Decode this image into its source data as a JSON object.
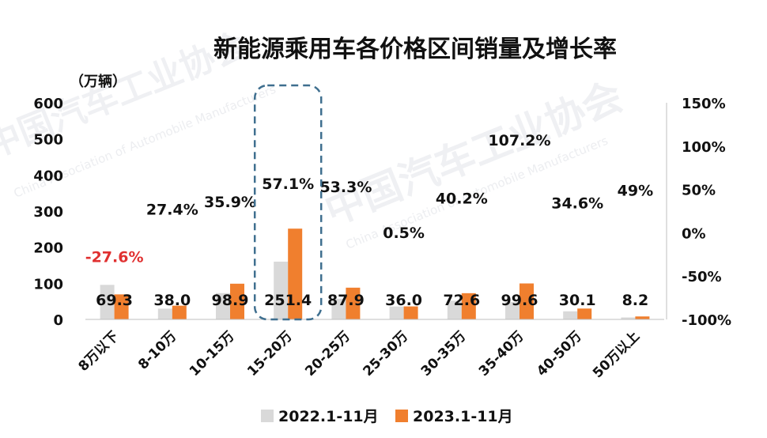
{
  "chart_data": {
    "type": "bar",
    "title": "新能源乘用车各价格区间销量及增长率",
    "unit_label": "（万辆）",
    "categories": [
      "8万以下",
      "8-10万",
      "10-15万",
      "15-20万",
      "20-25万",
      "25-30万",
      "30-35万",
      "35-40万",
      "40-50万",
      "50万以上"
    ],
    "series": [
      {
        "name": "2022.1-11月",
        "color": "#d9d9d9",
        "values": [
          95.7,
          29.8,
          72.8,
          160.0,
          57.3,
          35.8,
          51.8,
          48.1,
          22.4,
          5.5
        ]
      },
      {
        "name": "2023.1-11月",
        "color": "#f07f2e",
        "values": [
          69.3,
          38.0,
          98.9,
          251.4,
          87.9,
          36.0,
          72.6,
          99.6,
          30.1,
          8.2
        ]
      }
    ],
    "value_labels": [
      "69.3",
      "38.0",
      "98.9",
      "251.4",
      "87.9",
      "36.0",
      "72.6",
      "99.6",
      "30.1",
      "8.2"
    ],
    "growth_labels": [
      "-27.6%",
      "27.4%",
      "35.9%",
      "57.1%",
      "53.3%",
      "0.5%",
      "40.2%",
      "107.2%",
      "34.6%",
      "49%"
    ],
    "growth_values": [
      -27.6,
      27.4,
      35.9,
      57.1,
      53.3,
      0.5,
      40.2,
      107.2,
      34.6,
      49
    ],
    "ylim": [
      0,
      600
    ],
    "y_ticks": [
      "600",
      "500",
      "400",
      "300",
      "200",
      "100",
      "0"
    ],
    "y2lim": [
      -100,
      150
    ],
    "y2_ticks": [
      "150%",
      "100%",
      "50%",
      "0%",
      "-50%",
      "-100%"
    ],
    "highlight_category": "15-20万",
    "negative_color": "#e03030",
    "highlight_color": "#3f6f8f",
    "legend_position": "bottom",
    "grid": false
  },
  "watermark": {
    "cn": "中国汽车工业协会",
    "en": "China Association of Automobile Manufacturers"
  }
}
